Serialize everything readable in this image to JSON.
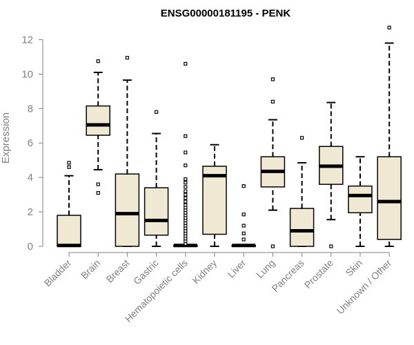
{
  "chart_data": {
    "type": "box",
    "title": "ENSG00000181195 - PENK",
    "xlabel": "",
    "ylabel": "Expression",
    "ylim": [
      0,
      12.5
    ],
    "yticks": [
      0,
      2,
      4,
      6,
      8,
      10,
      12
    ],
    "box_fill": "#efe8d2",
    "categories": [
      "Bladder",
      "Brain",
      "Breast",
      "Gastric",
      "Hematopoietic cells",
      "Kidney",
      "Liver",
      "Lung",
      "Pancreas",
      "Prostate",
      "Skin",
      "Unknown / Other"
    ],
    "boxes": [
      {
        "name": "Bladder",
        "whisker_low": 0,
        "q1": 0,
        "median": 0.05,
        "q3": 1.8,
        "whisker_high": 4.1,
        "outliers": [
          4.6,
          4.85
        ]
      },
      {
        "name": "Brain",
        "whisker_low": 4.45,
        "q1": 6.45,
        "median": 7.05,
        "q3": 8.15,
        "whisker_high": 10.1,
        "outliers": [
          3.1,
          3.6,
          10.75
        ]
      },
      {
        "name": "Breast",
        "whisker_low": 0,
        "q1": 0,
        "median": 1.9,
        "q3": 4.2,
        "whisker_high": 9.65,
        "outliers": [
          10.95
        ]
      },
      {
        "name": "Gastric",
        "whisker_low": 0,
        "q1": 0.65,
        "median": 1.5,
        "q3": 3.4,
        "whisker_high": 6.55,
        "outliers": [
          7.8
        ]
      },
      {
        "name": "Hematopoietic cells",
        "whisker_low": 0,
        "q1": 0,
        "median": 0.05,
        "q3": 0.05,
        "whisker_high": 0.05,
        "outliers": [
          0.15,
          0.3,
          0.45,
          0.6,
          0.75,
          0.9,
          1.05,
          1.2,
          1.35,
          1.5,
          1.65,
          1.8,
          1.95,
          2.1,
          2.25,
          2.4,
          2.6,
          2.8,
          3.0,
          3.2,
          3.45,
          3.7,
          3.9,
          4.7,
          5.45,
          6.4,
          10.6
        ]
      },
      {
        "name": "Kidney",
        "whisker_low": 0,
        "q1": 0.7,
        "median": 4.1,
        "q3": 4.65,
        "whisker_high": 5.9,
        "outliers": []
      },
      {
        "name": "Liver",
        "whisker_low": 0,
        "q1": 0,
        "median": 0.05,
        "q3": 0.05,
        "whisker_high": 0.05,
        "outliers": [
          0.4,
          0.75,
          1.2,
          1.85,
          3.5
        ]
      },
      {
        "name": "Lung",
        "whisker_low": 2.1,
        "q1": 3.45,
        "median": 4.35,
        "q3": 5.2,
        "whisker_high": 7.35,
        "outliers": [
          0,
          8.4,
          9.7
        ]
      },
      {
        "name": "Pancreas",
        "whisker_low": 0,
        "q1": 0,
        "median": 0.9,
        "q3": 2.2,
        "whisker_high": 4.85,
        "outliers": [
          6.3
        ]
      },
      {
        "name": "Prostate",
        "whisker_low": 1.55,
        "q1": 3.6,
        "median": 4.65,
        "q3": 5.8,
        "whisker_high": 8.35,
        "outliers": [
          0
        ]
      },
      {
        "name": "Skin",
        "whisker_low": 0,
        "q1": 1.95,
        "median": 2.95,
        "q3": 3.5,
        "whisker_high": 5.2,
        "outliers": []
      },
      {
        "name": "Unknown / Other",
        "whisker_low": 0,
        "q1": 0.4,
        "median": 2.6,
        "q3": 5.2,
        "whisker_high": 11.8,
        "outliers": [
          12.7
        ]
      }
    ]
  }
}
